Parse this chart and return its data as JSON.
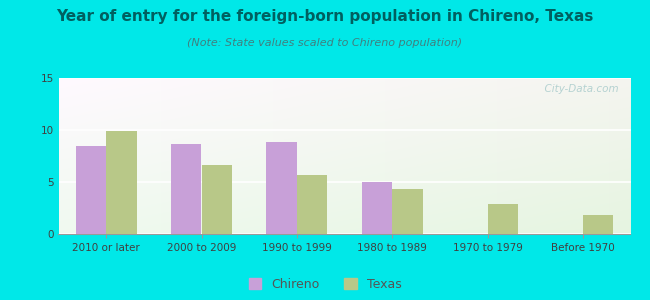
{
  "title": "Year of entry for the foreign-born population in Chireno, Texas",
  "subtitle": "(Note: State values scaled to Chireno population)",
  "categories": [
    "2010 or later",
    "2000 to 2009",
    "1990 to 1999",
    "1980 to 1989",
    "1970 to 1979",
    "Before 1970"
  ],
  "chireno_values": [
    8.5,
    8.7,
    8.8,
    5.0,
    0,
    0
  ],
  "texas_values": [
    9.9,
    6.6,
    5.7,
    4.3,
    2.9,
    1.8
  ],
  "chireno_color": "#c8a0d8",
  "texas_color": "#b8c888",
  "background_color": "#00e8e8",
  "title_color": "#006060",
  "subtitle_color": "#408080",
  "tick_color": "#404040",
  "ylim": [
    0,
    15
  ],
  "yticks": [
    0,
    5,
    10,
    15
  ],
  "bar_width": 0.32,
  "title_fontsize": 11,
  "subtitle_fontsize": 8,
  "tick_fontsize": 7.5,
  "legend_fontsize": 9,
  "watermark": "  City-Data.com"
}
